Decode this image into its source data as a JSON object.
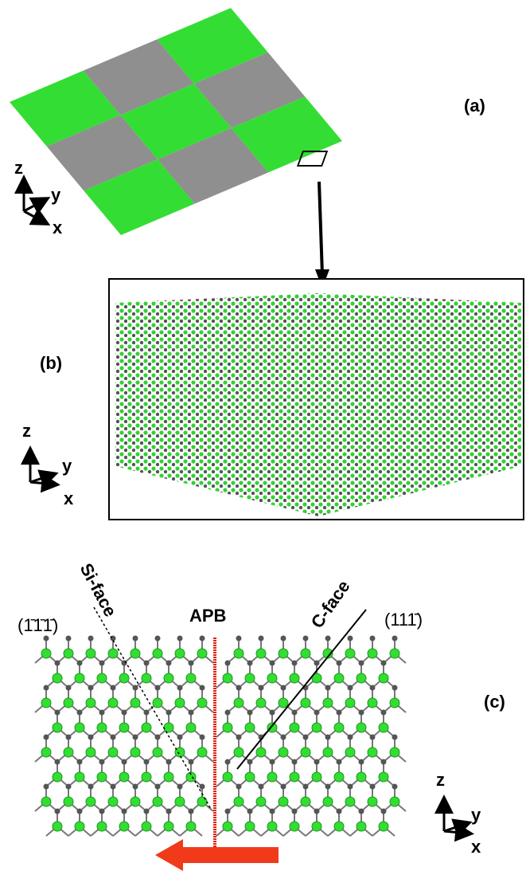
{
  "panels": {
    "a": {
      "label": "(a)",
      "axes": {
        "z": "z",
        "y": "y",
        "x": "x"
      }
    },
    "b": {
      "label": "(b)",
      "axes": {
        "z": "z",
        "y": "y",
        "x": "x"
      }
    },
    "c": {
      "label": "(c)",
      "axes": {
        "z": "z",
        "y": "y",
        "x": "x"
      },
      "si_face": "Si-face",
      "c_face": "C-face",
      "apb": "APB",
      "left_plane": "(1̄1̄1̄)",
      "right_plane": "(111̄)"
    }
  }
}
